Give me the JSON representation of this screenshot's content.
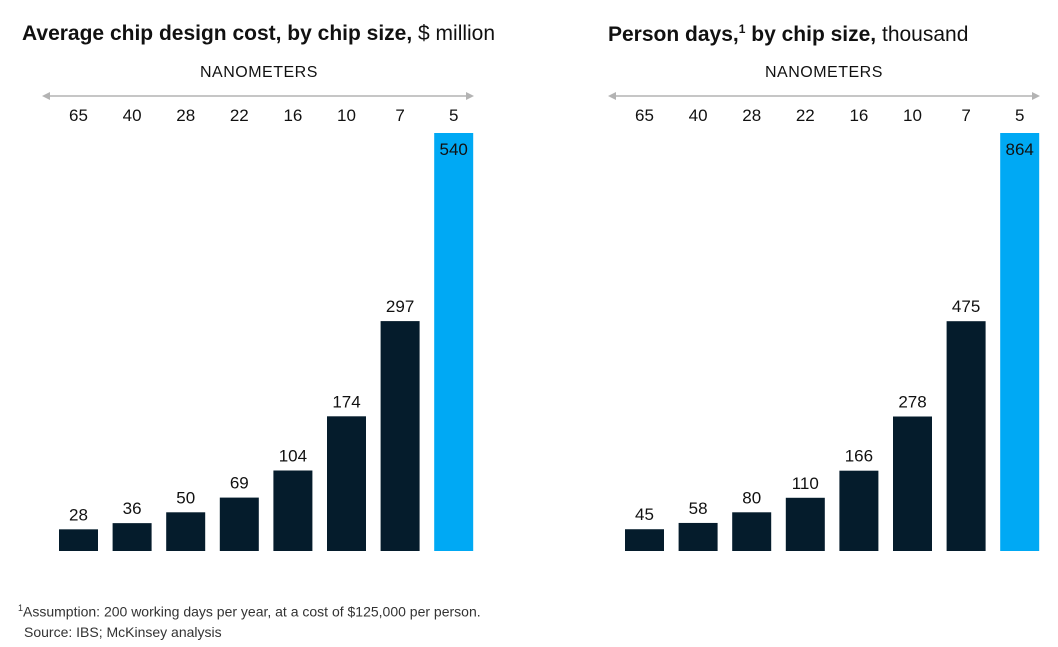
{
  "colors": {
    "bar": "#051c2c",
    "highlight": "#00a9f4",
    "arrow": "#b3b3b3"
  },
  "chart_data": [
    {
      "type": "bar",
      "title": "Average chip design cost, by chip size,",
      "title_sup": "",
      "unit": "$ million",
      "xlabel": "NANOMETERS",
      "categories": [
        "65",
        "40",
        "28",
        "22",
        "16",
        "10",
        "7",
        "5"
      ],
      "values": [
        28,
        36,
        50,
        69,
        104,
        174,
        297,
        540
      ],
      "ylim": [
        0,
        540
      ],
      "highlight_index": 7
    },
    {
      "type": "bar",
      "title": "Person days,",
      "title_sup": "1",
      "title_rest": "by chip size,",
      "unit": "thousand",
      "xlabel": "NANOMETERS",
      "categories": [
        "65",
        "40",
        "28",
        "22",
        "16",
        "10",
        "7",
        "5"
      ],
      "values": [
        45,
        58,
        80,
        110,
        166,
        278,
        475,
        864
      ],
      "ylim": [
        0,
        864
      ],
      "highlight_index": 7
    }
  ],
  "footnote": {
    "marker": "1",
    "text": "Assumption: 200 working days per year, at a cost of $125,000 per person.",
    "source": "Source: IBS; McKinsey analysis"
  }
}
